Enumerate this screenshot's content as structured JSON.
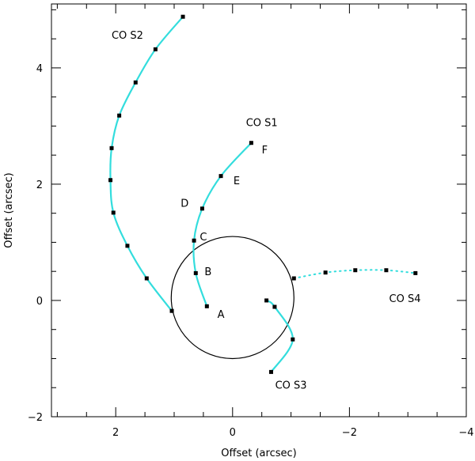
{
  "chart_data": {
    "type": "scatter",
    "xlabel": "Offset (arcsec)",
    "ylabel": "Offset (arcsec)",
    "xlim": [
      3.1,
      -4.0
    ],
    "ylim": [
      -2.0,
      5.1
    ],
    "x_ticks": [
      2,
      0,
      -2,
      -4
    ],
    "y_ticks": [
      -2,
      0,
      2,
      4
    ],
    "x_tick_labels": [
      "2",
      "0",
      "−2",
      "−4"
    ],
    "y_tick_labels": [
      "−2",
      "0",
      "2",
      "4"
    ],
    "circle": {
      "center": [
        0.0,
        0.05
      ],
      "radius": 1.05
    },
    "series": [
      {
        "name": "CO S2",
        "label_pos": [
          1.8,
          4.5
        ],
        "color": "#33dddd",
        "dotted": false,
        "points": [
          [
            0.85,
            4.88
          ],
          [
            1.32,
            4.32
          ],
          [
            1.66,
            3.75
          ],
          [
            1.94,
            3.18
          ],
          [
            2.07,
            2.62
          ],
          [
            2.09,
            2.07
          ],
          [
            2.04,
            1.51
          ],
          [
            1.8,
            0.94
          ],
          [
            1.47,
            0.38
          ],
          [
            1.04,
            -0.18
          ]
        ]
      },
      {
        "name": "CO S1",
        "label_pos": [
          -0.5,
          3.0
        ],
        "color": "#33dddd",
        "dotted": false,
        "points": [
          [
            -0.32,
            2.71
          ],
          [
            0.2,
            2.14
          ],
          [
            0.52,
            1.58
          ],
          [
            0.66,
            1.03
          ],
          [
            0.63,
            0.47
          ],
          [
            0.44,
            -0.1
          ]
        ]
      },
      {
        "name": "CO S3",
        "label_pos": [
          -1.0,
          -1.52
        ],
        "color": "#33dddd",
        "dotted": false,
        "points": [
          [
            -0.58,
            0.0
          ],
          [
            -0.72,
            -0.11
          ],
          [
            -1.03,
            -0.67
          ],
          [
            -0.66,
            -1.23
          ]
        ]
      },
      {
        "name": "CO S4",
        "label_pos": [
          -2.95,
          -0.03
        ],
        "color": "#33dddd",
        "dotted": true,
        "points": [
          [
            -1.05,
            0.38
          ],
          [
            -1.59,
            0.48
          ],
          [
            -2.1,
            0.52
          ],
          [
            -2.63,
            0.52
          ],
          [
            -3.13,
            0.47
          ]
        ]
      }
    ],
    "annotations": [
      {
        "text": "A",
        "x": 0.2,
        "y": -0.23
      },
      {
        "text": "B",
        "x": 0.42,
        "y": 0.5
      },
      {
        "text": "C",
        "x": 0.5,
        "y": 1.1
      },
      {
        "text": "D",
        "x": 0.82,
        "y": 1.68
      },
      {
        "text": "E",
        "x": -0.07,
        "y": 2.07
      },
      {
        "text": "F",
        "x": -0.55,
        "y": 2.6
      }
    ]
  }
}
